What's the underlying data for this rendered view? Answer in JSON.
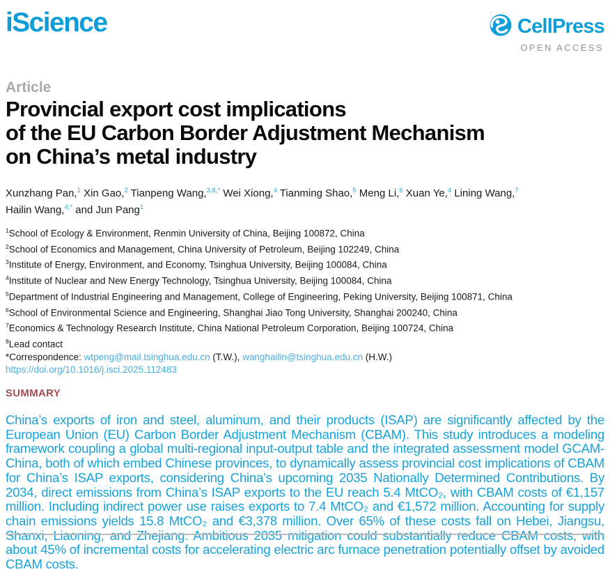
{
  "journal": {
    "name": "iScience"
  },
  "publisher": {
    "name": "CellPress",
    "tagline": "OPEN ACCESS"
  },
  "article": {
    "kind_label": "Article",
    "title_lines": [
      "Provincial export cost implications",
      "of the EU Carbon Border Adjustment Mechanism",
      "on China’s metal industry"
    ]
  },
  "authors": [
    {
      "name": "Xunzhang Pan,",
      "sup": "1",
      "break_after": false
    },
    {
      "name": "Xin Gao,",
      "sup": "2",
      "break_after": false
    },
    {
      "name": "Tianpeng Wang,",
      "sup": "3,8,*",
      "break_after": false
    },
    {
      "name": "Wei Xiong,",
      "sup": "4",
      "break_after": false
    },
    {
      "name": "Tianming Shao,",
      "sup": "5",
      "break_after": false
    },
    {
      "name": "Meng Li,",
      "sup": "6",
      "break_after": false
    },
    {
      "name": "Xuan Ye,",
      "sup": "4",
      "break_after": false
    },
    {
      "name": "Lining Wang,",
      "sup": "7",
      "break_after": true
    },
    {
      "name": "Hailin Wang,",
      "sup": "4,*",
      "break_after": false
    },
    {
      "name": "and Jun Pang",
      "sup": "1",
      "break_after": false
    }
  ],
  "affiliations": [
    {
      "sup": "1",
      "text": "School of Ecology & Environment, Renmin University of China, Beijing 100872, China"
    },
    {
      "sup": "2",
      "text": "School of Economics and Management, China University of Petroleum, Beijing 102249, China"
    },
    {
      "sup": "3",
      "text": "Institute of Energy, Environment, and Economy, Tsinghua University, Beijing 100084, China"
    },
    {
      "sup": "4",
      "text": "Institute of Nuclear and New Energy Technology, Tsinghua University, Beijing 100084, China"
    },
    {
      "sup": "5",
      "text": "Department of Industrial Engineering and Management, College of Engineering, Peking University, Beijing 100871, China"
    },
    {
      "sup": "6",
      "text": "School of Environmental Science and Engineering, Shanghai Jiao Tong University, Shanghai 200240, China"
    },
    {
      "sup": "7",
      "text": "Economics & Technology Research Institute, China National Petroleum Corporation, Beijing 100724, China"
    },
    {
      "sup": "8",
      "text": "Lead contact"
    }
  ],
  "correspondence": {
    "parts": [
      {
        "text": "*Correspondence: ",
        "link": false
      },
      {
        "text": "wtpeng@mail.tsinghua.edu.cn",
        "link": true
      },
      {
        "text": " (T.W.), ",
        "link": false
      },
      {
        "text": "wanghailin@tsinghua.edu.cn",
        "link": true
      },
      {
        "text": " (H.W.)",
        "link": false
      }
    ],
    "doi": "https://doi.org/10.1016/j.isci.2025.112483"
  },
  "summary": {
    "heading": "SUMMARY",
    "text": "China’s exports of iron and steel, aluminum, and their products (ISAP) are significantly affected by the European Union (EU) Carbon Border Adjustment Mechanism (CBAM). This study introduces a modeling framework coupling a global multi-regional input-output table and the integrated assessment model GCAM-China, both of which embed Chinese provinces, to dynamically assess provincial cost implications of CBAM for China’s ISAP exports, considering China’s upcoming 2035 Nationally Determined Contributions. By 2034, direct emissions from China’s ISAP exports to the EU reach 5.4 MtCO₂, with CBAM costs of €1,157 million. Including indirect power use raises exports to 7.4 MtCO₂ and €1,572 million. Accounting for supply chain emissions yields 15.8 MtCO₂ and €3,378 million. Over 65% of these costs fall on Hebei, Jiangsu, Shanxi, Liaoning, and Zhejiang. Ambitious 2035 mitigation could substantially reduce CBAM costs, with about 45% of incremental costs for accelerating electric arc furnace penetration potentially offset by avoided CBAM costs."
  },
  "colors": {
    "brand_cyan": "#0e9dd8",
    "summary_cyan": "#17a2db",
    "link_cyan": "#49afdf",
    "superscript_cyan": "#2aa9df",
    "heading_red": "#a64c50",
    "label_gray": "#a7a9ac",
    "open_access_gray": "#8e9093",
    "rule_gray": "#b9bbbd"
  }
}
